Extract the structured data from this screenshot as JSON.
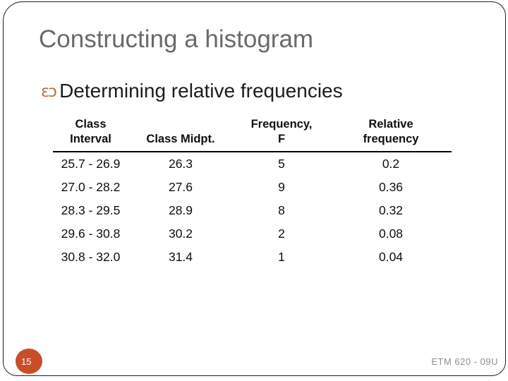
{
  "slide": {
    "title": "Constructing a histogram",
    "bullet": {
      "glyph": "ɛɔ",
      "text": "Determining relative frequencies"
    },
    "page_number": "15",
    "footer_code": "ETM 620 - 09U",
    "colors": {
      "title_gray": "#696969",
      "body_text": "#1c1c1c",
      "bullet_glyph": "#b5724e",
      "badge_orange": "#c94e28",
      "footer_gray": "#8f8f8f",
      "frame_border": "#1f1f1f"
    }
  },
  "table": {
    "headers": [
      {
        "line1": "Class",
        "line2": "Interval"
      },
      {
        "line1": "",
        "line2": "Class Midpt."
      },
      {
        "line1": "Frequency,",
        "line2": "F"
      },
      {
        "line1": "Relative",
        "line2": "frequency"
      }
    ],
    "rows": [
      [
        "25.7 - 26.9",
        "26.3",
        "5",
        "0.2"
      ],
      [
        "27.0 - 28.2",
        "27.6",
        "9",
        "0.36"
      ],
      [
        "28.3 - 29.5",
        "28.9",
        "8",
        "0.32"
      ],
      [
        "29.6 - 30.8",
        "30.2",
        "2",
        "0.08"
      ],
      [
        "30.8 - 32.0",
        "31.4",
        "1",
        "0.04"
      ]
    ]
  }
}
